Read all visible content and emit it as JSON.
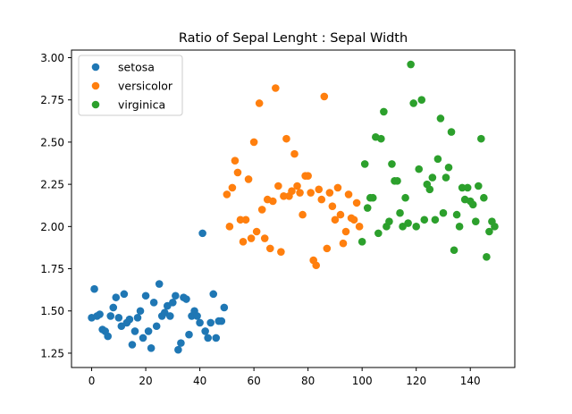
{
  "chart_data": {
    "type": "scatter",
    "title": "Ratio of Sepal Lenght : Sepal Width",
    "xlabel": "",
    "ylabel": "",
    "xlim": [
      -7.45,
      156.45
    ],
    "ylim": [
      1.165,
      3.045
    ],
    "x_ticks": [
      0,
      20,
      40,
      60,
      80,
      100,
      120,
      140
    ],
    "y_ticks": [
      1.25,
      1.5,
      1.75,
      2.0,
      2.25,
      2.5,
      2.75,
      3.0
    ],
    "x_tick_labels": [
      "0",
      "20",
      "40",
      "60",
      "80",
      "100",
      "120",
      "140"
    ],
    "y_tick_labels": [
      "1.25",
      "1.50",
      "1.75",
      "2.00",
      "2.25",
      "2.50",
      "2.75",
      "3.00"
    ],
    "grid": false,
    "legend_position": "top-left",
    "series": [
      {
        "name": "setosa",
        "color": "#1f77b4",
        "x": [
          0,
          1,
          2,
          3,
          4,
          5,
          6,
          7,
          8,
          9,
          10,
          11,
          12,
          13,
          14,
          15,
          16,
          17,
          18,
          19,
          20,
          21,
          22,
          23,
          24,
          25,
          26,
          27,
          28,
          29,
          30,
          31,
          32,
          33,
          34,
          35,
          36,
          37,
          38,
          39,
          40,
          41,
          42,
          43,
          44,
          45,
          46,
          47,
          48,
          49
        ],
        "y": [
          1.46,
          1.63,
          1.47,
          1.48,
          1.39,
          1.38,
          1.35,
          1.47,
          1.52,
          1.58,
          1.46,
          1.41,
          1.6,
          1.43,
          1.45,
          1.3,
          1.38,
          1.46,
          1.5,
          1.34,
          1.59,
          1.38,
          1.28,
          1.55,
          1.41,
          1.66,
          1.47,
          1.49,
          1.53,
          1.47,
          1.55,
          1.59,
          1.27,
          1.31,
          1.58,
          1.57,
          1.36,
          1.47,
          1.5,
          1.47,
          1.43,
          1.96,
          1.38,
          1.34,
          1.43,
          1.6,
          1.34,
          1.44,
          1.44,
          1.52
        ]
      },
      {
        "name": "versicolor",
        "color": "#ff7f0e",
        "x": [
          50,
          51,
          52,
          53,
          54,
          55,
          56,
          57,
          58,
          59,
          60,
          61,
          62,
          63,
          64,
          65,
          66,
          67,
          68,
          69,
          70,
          71,
          72,
          73,
          74,
          75,
          76,
          77,
          78,
          79,
          80,
          81,
          82,
          83,
          84,
          85,
          86,
          87,
          88,
          89,
          90,
          91,
          92,
          93,
          94,
          95,
          96,
          97,
          98,
          99
        ],
        "y": [
          2.19,
          2.0,
          2.23,
          2.39,
          2.32,
          2.04,
          1.91,
          2.04,
          2.28,
          1.93,
          2.5,
          1.97,
          2.73,
          2.1,
          1.93,
          2.16,
          1.87,
          2.15,
          2.82,
          2.24,
          1.85,
          2.18,
          2.52,
          2.18,
          2.21,
          2.43,
          2.24,
          2.2,
          2.07,
          2.3,
          2.3,
          2.2,
          1.8,
          1.77,
          2.22,
          2.16,
          2.77,
          1.87,
          2.2,
          2.12,
          2.04,
          2.23,
          2.07,
          1.9,
          1.97,
          2.19,
          2.05,
          2.04,
          2.14,
          2.0
        ]
      },
      {
        "name": "virginica",
        "color": "#2ca02c",
        "x": [
          100,
          101,
          102,
          103,
          104,
          105,
          106,
          107,
          108,
          109,
          110,
          111,
          112,
          113,
          114,
          115,
          116,
          117,
          118,
          119,
          120,
          121,
          122,
          123,
          124,
          125,
          126,
          127,
          128,
          129,
          130,
          131,
          132,
          133,
          134,
          135,
          136,
          137,
          138,
          139,
          140,
          141,
          142,
          143,
          144,
          145,
          146,
          147,
          148,
          149
        ],
        "y": [
          1.91,
          2.37,
          2.11,
          2.17,
          2.17,
          2.53,
          1.96,
          2.52,
          2.68,
          2.0,
          2.03,
          2.37,
          2.27,
          2.27,
          2.08,
          2.0,
          2.17,
          2.02,
          2.96,
          2.73,
          2.0,
          2.34,
          2.75,
          2.04,
          2.25,
          2.22,
          2.29,
          2.04,
          2.4,
          2.64,
          2.08,
          2.29,
          2.35,
          2.56,
          1.86,
          2.07,
          2.0,
          2.23,
          2.16,
          2.23,
          2.15,
          2.13,
          2.03,
          2.24,
          2.52,
          2.17,
          1.82,
          1.97,
          2.03,
          2.0
        ]
      }
    ]
  }
}
